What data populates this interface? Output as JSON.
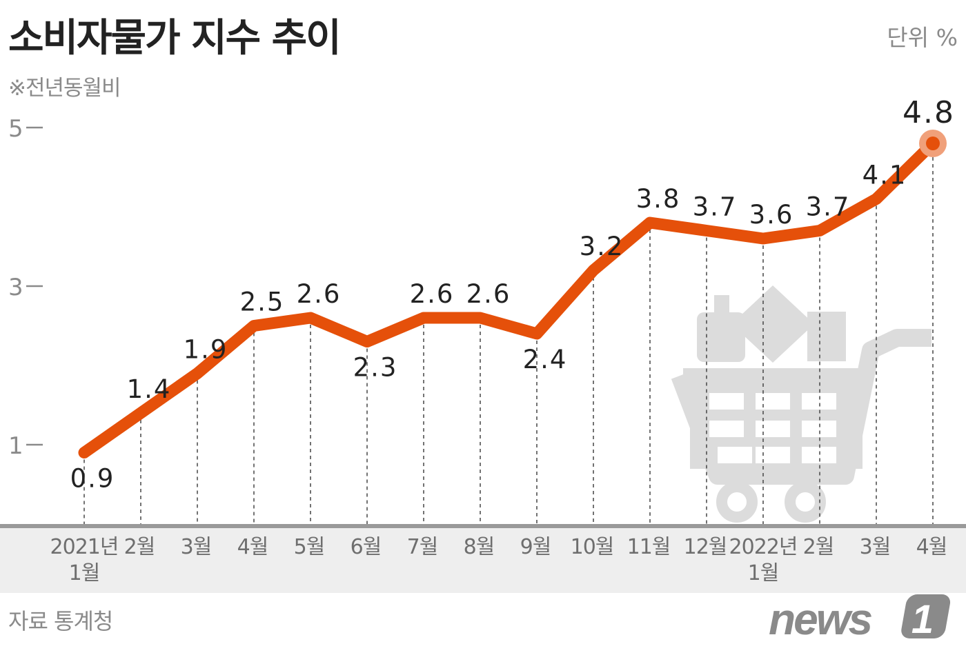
{
  "header": {
    "title": "소비자물가 지수 추이",
    "subtitle": "※전년동월비",
    "unit": "단위 %"
  },
  "footer": {
    "source": "자료 통계청",
    "logo_text": "news",
    "logo_mark": "1"
  },
  "colors": {
    "line": "#e5500a",
    "highlight": "#f0a07a",
    "axis_band": "#eeeeee",
    "axis_line": "#9a9a9a",
    "icon": "#dcdcdc",
    "text_dark": "#222222",
    "text_gray": "#8a8a8a"
  },
  "icons": {
    "background": "shopping-cart-icon"
  },
  "chart_data": {
    "type": "line",
    "categories": [
      [
        "2021년",
        "1월"
      ],
      [
        "2월"
      ],
      [
        "3월"
      ],
      [
        "4월"
      ],
      [
        "5월"
      ],
      [
        "6월"
      ],
      [
        "7월"
      ],
      [
        "8월"
      ],
      [
        "9월"
      ],
      [
        "10월"
      ],
      [
        "11월"
      ],
      [
        "12월"
      ],
      [
        "2022년",
        "1월"
      ],
      [
        "2월"
      ],
      [
        "3월"
      ],
      [
        "4월"
      ]
    ],
    "series": [
      {
        "values": [
          0.9,
          1.4,
          1.9,
          2.5,
          2.6,
          2.3,
          2.6,
          2.6,
          2.4,
          3.2,
          3.8,
          3.7,
          3.6,
          3.7,
          4.1,
          4.8
        ]
      }
    ],
    "data_labels": [
      "0.9",
      "1.4",
      "1.9",
      "2.5",
      "2.6",
      "2.3",
      "2.6",
      "2.6",
      "2.4",
      "3.2",
      "3.8",
      "3.7",
      "3.6",
      "3.7",
      "4.1",
      "4.8"
    ],
    "y_ticks": [
      1,
      3,
      5
    ],
    "ylim": [
      0,
      5.2
    ],
    "grid": false,
    "dropline_style": "dashed",
    "highlight_last": true
  }
}
